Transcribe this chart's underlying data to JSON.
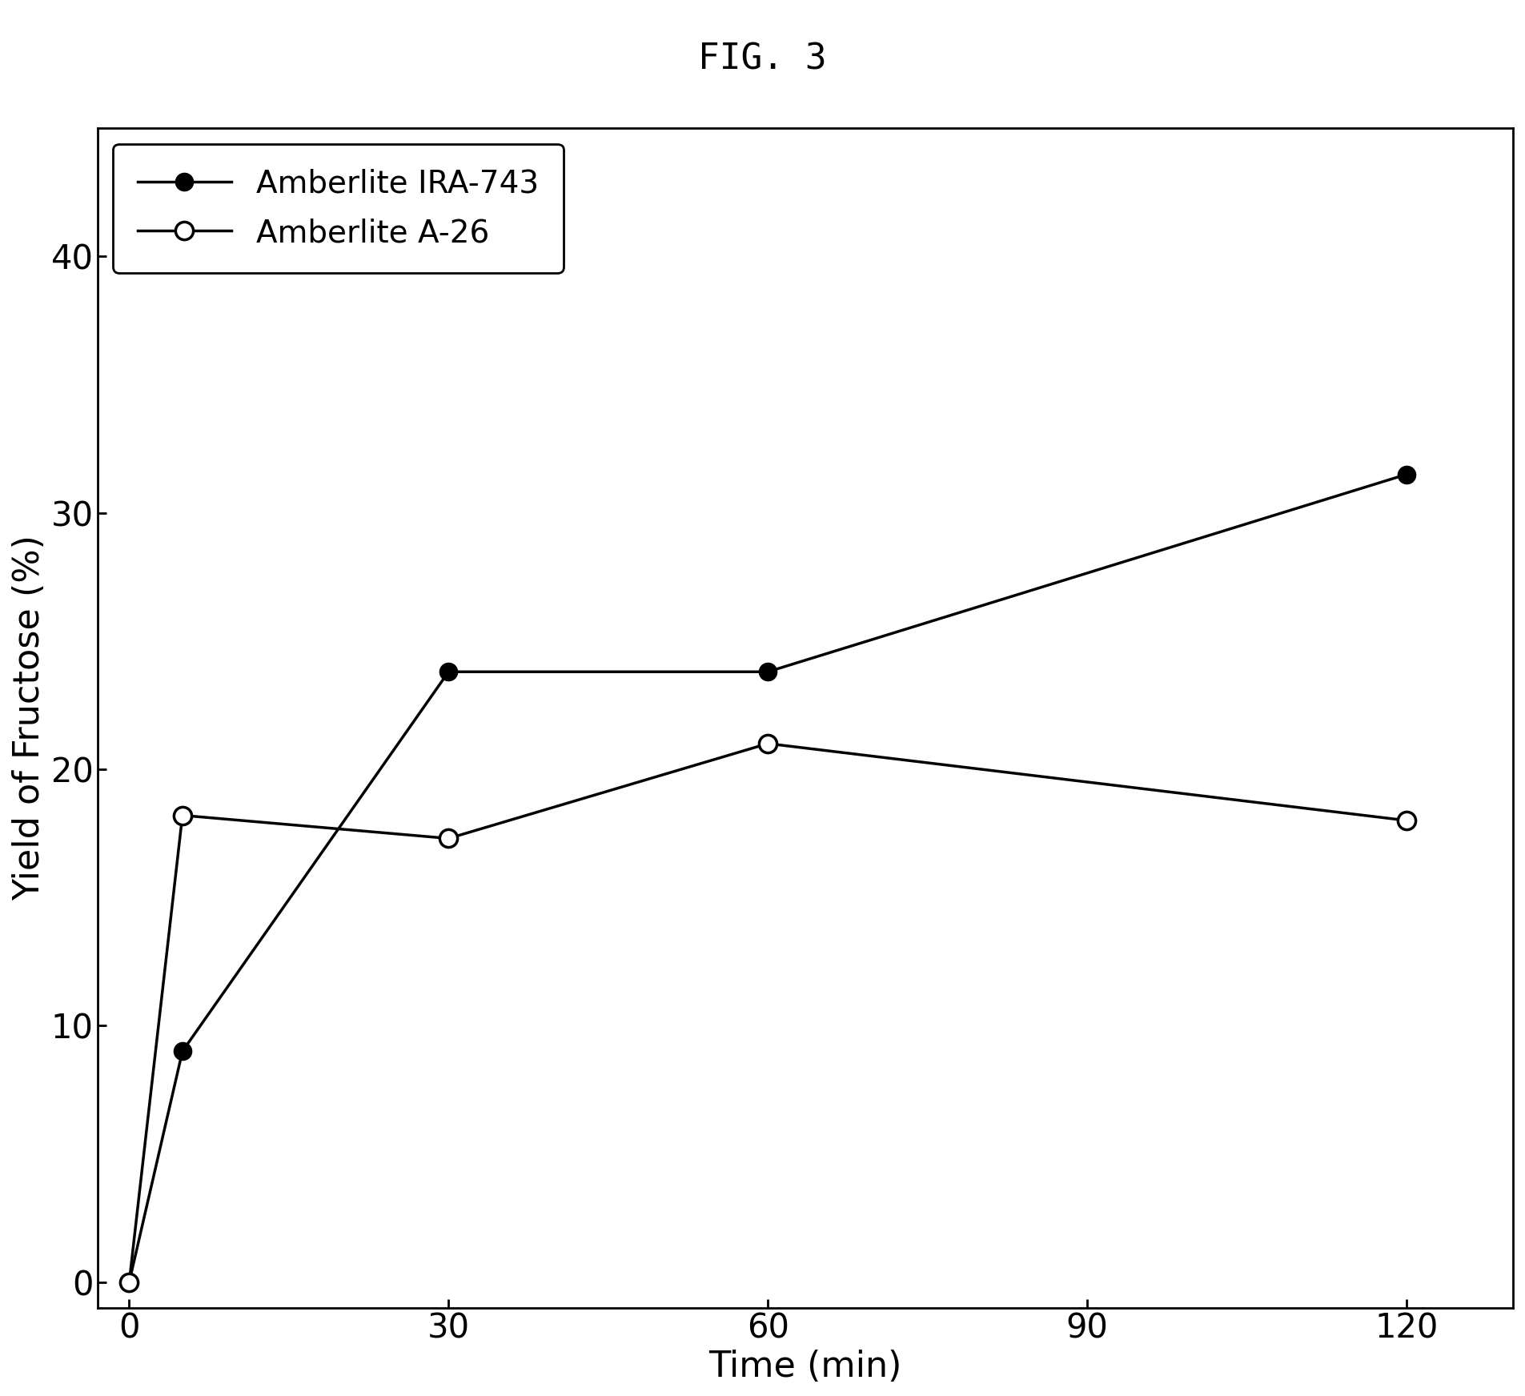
{
  "title": "FIG. 3",
  "xlabel": "Time (min)",
  "ylabel": "Yield of Fructose (%)",
  "series": [
    {
      "label": "Amberlite IRA-743",
      "x": [
        0,
        5,
        30,
        60,
        120
      ],
      "y": [
        0,
        9.0,
        23.8,
        23.8,
        31.5
      ],
      "marker": "o",
      "marker_filled": true,
      "color": "#000000",
      "linewidth": 2.5,
      "markersize": 16
    },
    {
      "label": "Amberlite A-26",
      "x": [
        0,
        5,
        30,
        60,
        120
      ],
      "y": [
        0,
        18.2,
        17.3,
        21.0,
        18.0
      ],
      "marker": "o",
      "marker_filled": false,
      "color": "#000000",
      "linewidth": 2.5,
      "markersize": 16
    }
  ],
  "xlim": [
    -3,
    130
  ],
  "ylim": [
    -1,
    45
  ],
  "xticks": [
    0,
    30,
    60,
    90,
    120
  ],
  "yticks": [
    0,
    10,
    20,
    30,
    40
  ],
  "title_fontsize": 32,
  "label_fontsize": 32,
  "tick_fontsize": 30,
  "legend_fontsize": 28,
  "background_color": "#ffffff",
  "plot_bg_color": "#ffffff"
}
